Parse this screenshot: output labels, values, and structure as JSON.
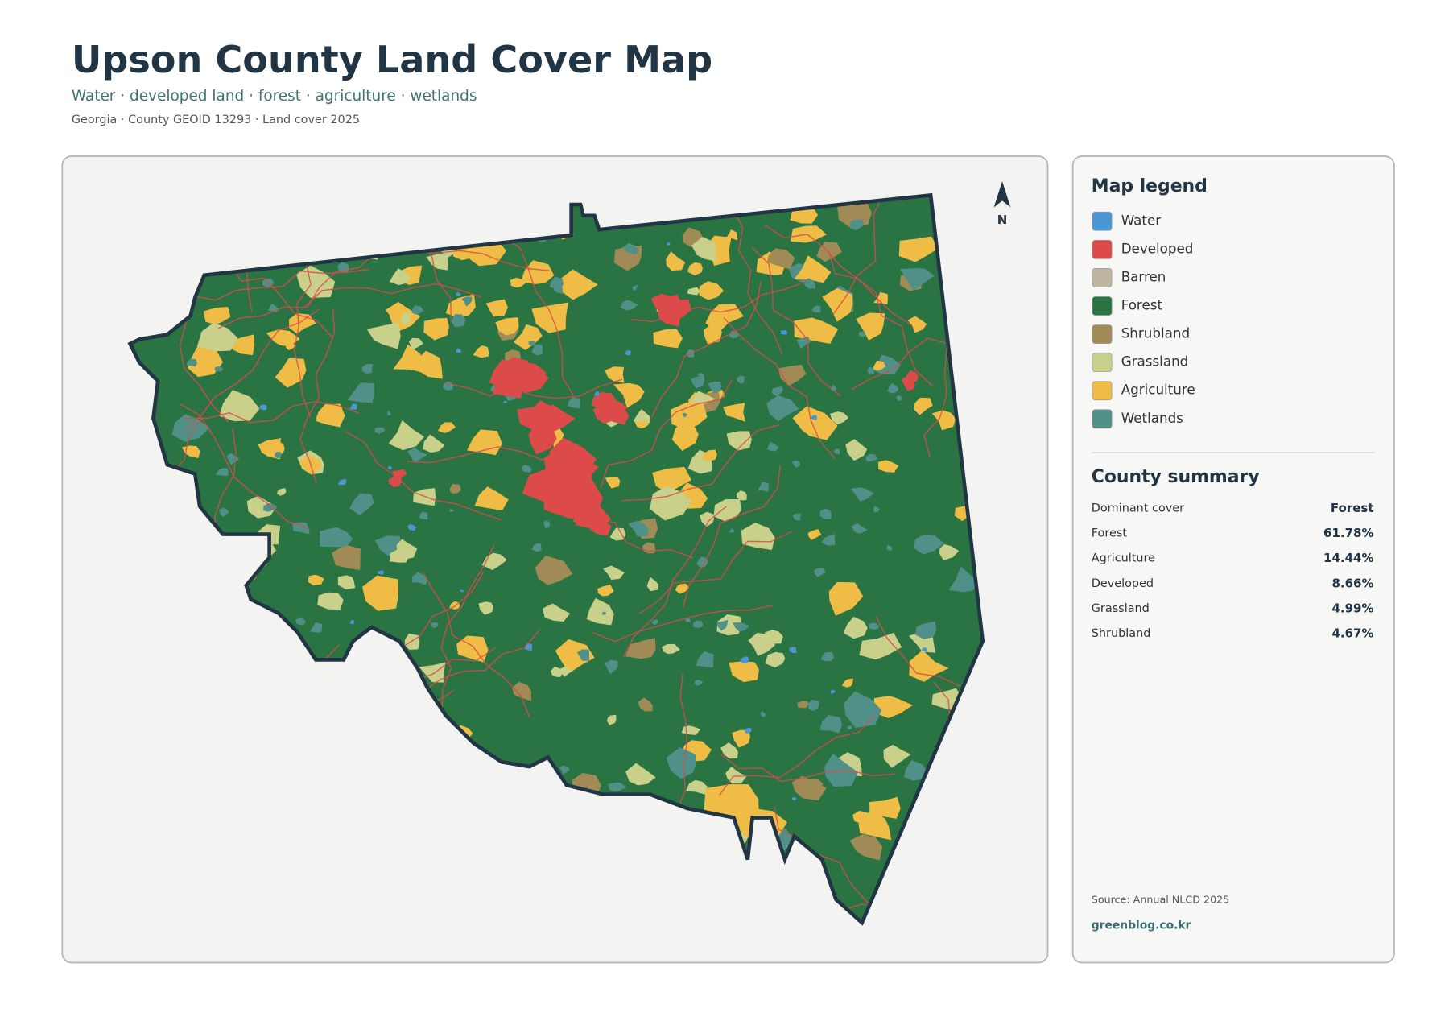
{
  "header": {
    "title": "Upson County Land Cover Map",
    "subtitle": "Water · developed land · forest · agriculture · wetlands",
    "meta": "Georgia · County GEOID 13293 · Land cover 2025"
  },
  "map": {
    "north": "N"
  },
  "legend": {
    "title": "Map legend",
    "items": [
      {
        "label": "Water",
        "color": "#4a97d6"
      },
      {
        "label": "Developed",
        "color": "#dc4a4a"
      },
      {
        "label": "Barren",
        "color": "#bfb5a0"
      },
      {
        "label": "Forest",
        "color": "#2a7444"
      },
      {
        "label": "Shrubland",
        "color": "#a08a55"
      },
      {
        "label": "Grassland",
        "color": "#c9d08a"
      },
      {
        "label": "Agriculture",
        "color": "#efbd45"
      },
      {
        "label": "Wetlands",
        "color": "#4f9189"
      }
    ]
  },
  "summary": {
    "title": "County summary",
    "rows": [
      [
        "Dominant cover",
        "Forest"
      ],
      [
        "Forest",
        "61.78%"
      ],
      [
        "Agriculture",
        "14.44%"
      ],
      [
        "Developed",
        "8.66%"
      ],
      [
        "Grassland",
        "4.99%"
      ],
      [
        "Shrubland",
        "4.67%"
      ]
    ]
  },
  "footer": {
    "source": "Source: Annual NLCD 2025",
    "credit": "greenblog.co.kr"
  }
}
